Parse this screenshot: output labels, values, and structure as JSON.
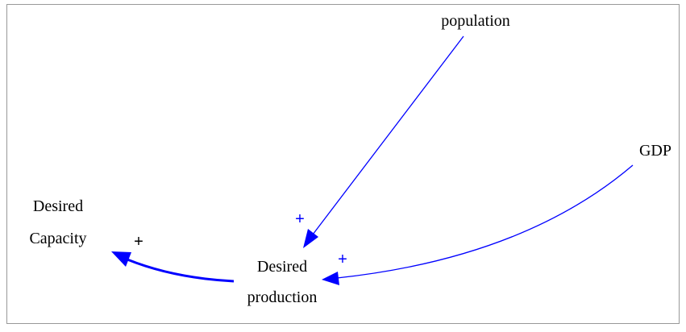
{
  "nodes": [
    {
      "label_lines": [
        "population"
      ]
    },
    {
      "label_lines": [
        "GDP"
      ]
    },
    {
      "label_lines": [
        "Desired",
        "Capacity"
      ]
    },
    {
      "label_lines": [
        "Desired",
        "production"
      ]
    }
  ],
  "links": [
    {
      "polarity": "+"
    },
    {
      "polarity": "+"
    },
    {
      "polarity": "+"
    }
  ]
}
